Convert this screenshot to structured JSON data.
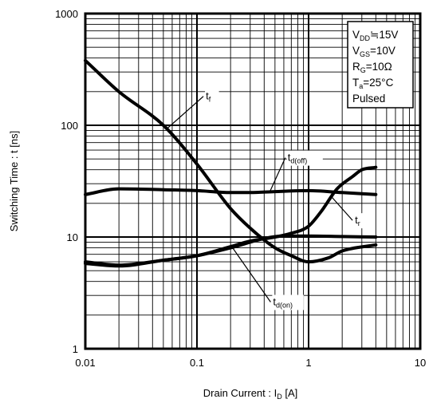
{
  "chart_data": {
    "type": "line",
    "xscale": "log",
    "yscale": "log",
    "xlim": [
      0.01,
      10
    ],
    "ylim": [
      1,
      1000
    ],
    "x_ticks": [
      "0.01",
      "0.1",
      "1",
      "10"
    ],
    "y_ticks": [
      "1",
      "10",
      "100",
      "1000"
    ],
    "xlabel": {
      "main": "Drain Current : I",
      "sub": "D",
      "unit": " [A]"
    },
    "ylabel": "Switching Time : t [ns]",
    "grid": true,
    "conditions": [
      {
        "base": "V",
        "sub": "DD",
        "rest": "≒15V"
      },
      {
        "base": "V",
        "sub": "GS",
        "rest": "=10V"
      },
      {
        "base": "R",
        "sub": "G",
        "rest": "=10Ω"
      },
      {
        "base": "T",
        "sub": "a",
        "rest": "=25°C"
      },
      {
        "base": "Pulsed",
        "sub": "",
        "rest": ""
      }
    ],
    "series": [
      {
        "name": "tf",
        "label_base": "t",
        "label_sub": "f",
        "points": [
          [
            0.01,
            380
          ],
          [
            0.02,
            200
          ],
          [
            0.05,
            100
          ],
          [
            0.1,
            45
          ],
          [
            0.2,
            18
          ],
          [
            0.3,
            12
          ],
          [
            0.5,
            8
          ],
          [
            0.7,
            6.8
          ],
          [
            1,
            6
          ],
          [
            1.5,
            6.5
          ],
          [
            2,
            7.5
          ],
          [
            4,
            8.5
          ]
        ]
      },
      {
        "name": "td(off)",
        "label_base": "t",
        "label_sub": "d(off)",
        "points": [
          [
            0.01,
            24
          ],
          [
            0.02,
            27
          ],
          [
            0.05,
            26.5
          ],
          [
            0.1,
            26
          ],
          [
            0.2,
            25
          ],
          [
            0.3,
            25
          ],
          [
            0.5,
            25.5
          ],
          [
            1,
            26
          ],
          [
            2,
            25
          ],
          [
            4,
            24
          ]
        ]
      },
      {
        "name": "tr",
        "label_base": "t",
        "label_sub": "r",
        "points": [
          [
            0.01,
            5.8
          ],
          [
            0.02,
            5.5
          ],
          [
            0.05,
            6.2
          ],
          [
            0.1,
            6.8
          ],
          [
            0.2,
            8.2
          ],
          [
            0.3,
            9.2
          ],
          [
            0.5,
            10
          ],
          [
            0.7,
            10.8
          ],
          [
            1,
            12.5
          ],
          [
            1.3,
            17
          ],
          [
            1.8,
            27
          ],
          [
            2.5,
            35
          ],
          [
            3,
            40
          ],
          [
            4,
            42
          ]
        ]
      },
      {
        "name": "td(on)",
        "label_base": "t",
        "label_sub": "d(on)",
        "points": [
          [
            0.01,
            6
          ],
          [
            0.02,
            5.6
          ],
          [
            0.05,
            6.2
          ],
          [
            0.1,
            6.8
          ],
          [
            0.2,
            8
          ],
          [
            0.4,
            9.7
          ],
          [
            0.6,
            10.2
          ],
          [
            1,
            10.2
          ],
          [
            2,
            10.1
          ],
          [
            4,
            10
          ]
        ]
      }
    ],
    "annotations": [
      {
        "series": "tf",
        "label_base": "t",
        "label_sub": "f",
        "at": [
          0.055,
          95
        ],
        "text_pos": [
          0.12,
          170
        ]
      },
      {
        "series": "td(off)",
        "label_base": "t",
        "label_sub": "d(off)",
        "at": [
          0.45,
          25.5
        ],
        "text_pos": [
          0.65,
          48
        ]
      },
      {
        "series": "tr",
        "label_base": "t",
        "label_sub": "r",
        "at": [
          1.6,
          23
        ],
        "text_pos": [
          2.6,
          13.2
        ]
      },
      {
        "series": "td(on)",
        "label_base": "t",
        "label_sub": "d(on)",
        "at": [
          0.2,
          8.5
        ],
        "text_pos": [
          0.48,
          2.45
        ]
      }
    ]
  }
}
